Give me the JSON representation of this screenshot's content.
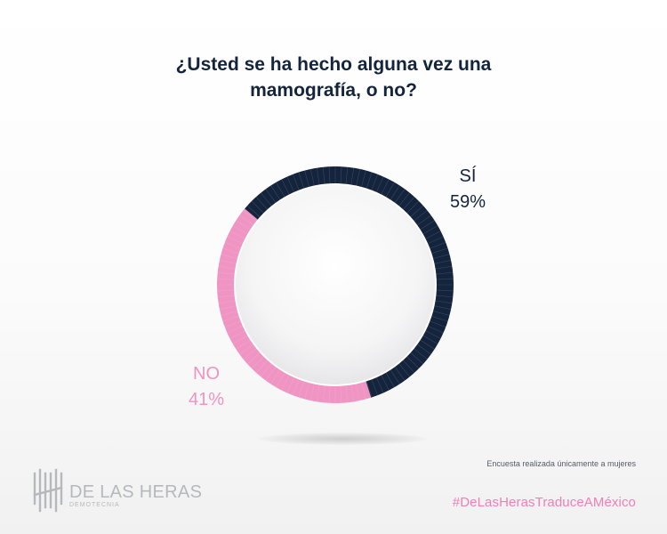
{
  "chart_data": {
    "type": "pie",
    "title": "¿Usted se ha hecho alguna vez una mamografía, o no?",
    "slices": [
      {
        "label": "SÍ",
        "value": 59,
        "display": "59%",
        "color": "#14243d"
      },
      {
        "label": "NO",
        "value": 41,
        "display": "41%",
        "color": "#ef94c3"
      }
    ]
  },
  "footer": {
    "note": "Encuesta realizada únicamente a mujeres",
    "hashtag": "#DeLasHerasTraduceAMéxico"
  },
  "brand": {
    "name": "DE LAS HERAS",
    "sub": "DEMOTECNIA"
  }
}
